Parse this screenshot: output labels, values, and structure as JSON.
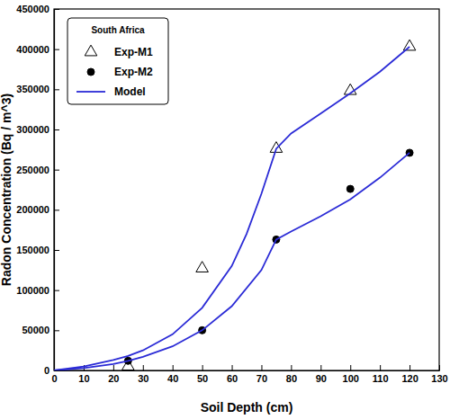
{
  "chart_data": {
    "type": "scatter",
    "x_label": "Soil Depth (cm)",
    "y_label": "Radon Concentration (Bq / m^3)",
    "legend_title": "South Africa",
    "legend": "upper left",
    "xlim": [
      0,
      130
    ],
    "xticks": [
      0,
      10,
      20,
      30,
      40,
      50,
      60,
      70,
      80,
      90,
      100,
      110,
      120,
      130
    ],
    "ylim": [
      0,
      450000
    ],
    "yticks": [
      0,
      50000,
      100000,
      150000,
      200000,
      250000,
      300000,
      350000,
      400000,
      450000
    ],
    "series": [
      {
        "name": "Exp-M1",
        "type": "scatter",
        "marker": "triangle-open",
        "color": "#000000",
        "x": [
          25,
          50,
          75,
          100,
          120
        ],
        "values": [
          5000,
          127000,
          276000,
          348000,
          403000
        ]
      },
      {
        "name": "Exp-M2",
        "type": "scatter",
        "marker": "circle",
        "color": "#000000",
        "x": [
          25,
          50,
          75,
          100,
          120
        ],
        "values": [
          12000,
          50000,
          163000,
          226000,
          271000
        ]
      },
      {
        "name": "Model",
        "type": "line",
        "line_style": "solid",
        "color": "#2b2bd6",
        "x": [
          0,
          10,
          20,
          25,
          30,
          40,
          50,
          60,
          65,
          70,
          75,
          80,
          90,
          100,
          110,
          120
        ],
        "values": [
          0,
          5000,
          13000,
          18000,
          25000,
          45000,
          78000,
          130000,
          170000,
          220000,
          276000,
          295000,
          320000,
          345000,
          372000,
          403000
        ]
      },
      {
        "name": "Model",
        "type": "line",
        "line_style": "solid",
        "color": "#2b2bd6",
        "x": [
          0,
          10,
          20,
          25,
          30,
          40,
          50,
          60,
          70,
          75,
          80,
          90,
          100,
          110,
          120
        ],
        "values": [
          0,
          3000,
          8000,
          12000,
          17000,
          30000,
          50000,
          80000,
          125000,
          163000,
          173000,
          192000,
          213000,
          240000,
          271000
        ]
      }
    ]
  }
}
